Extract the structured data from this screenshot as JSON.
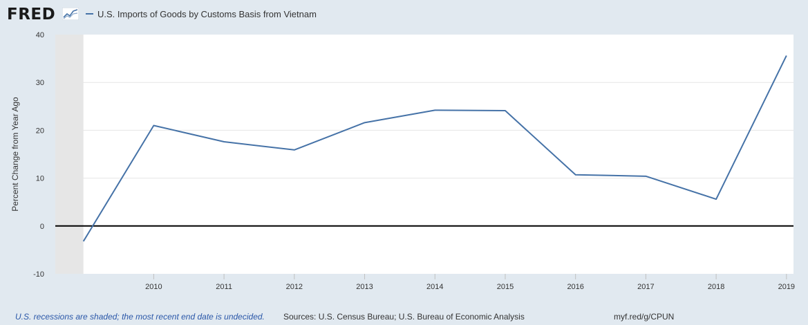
{
  "header": {
    "logo_text": "FRED",
    "series_label": "U.S. Imports of Goods by Customs Basis from Vietnam"
  },
  "colors": {
    "series": "#4572a7",
    "background": "#e1e9f0",
    "plot": "#ffffff",
    "recession": "#e6e6e6",
    "zero_line": "#000000"
  },
  "chart_data": {
    "type": "line",
    "title": "",
    "ylabel": "Percent Change from Year Ago",
    "xlabel": "",
    "ylim": [
      -10,
      40
    ],
    "yticks": [
      -10,
      0,
      10,
      20,
      30,
      40
    ],
    "xlim": [
      2008.6,
      2019.1
    ],
    "xticks": [
      2010,
      2011,
      2012,
      2013,
      2014,
      2015,
      2016,
      2017,
      2018,
      2019
    ],
    "grid": true,
    "legend_position": "top-left",
    "recessions": [
      [
        2008.6,
        2009.0
      ]
    ],
    "series": [
      {
        "name": "U.S. Imports of Goods by Customs Basis from Vietnam",
        "x": [
          2009,
          2010,
          2011,
          2012,
          2013,
          2014,
          2015,
          2016,
          2017,
          2018,
          2019
        ],
        "y": [
          -3.2,
          21.0,
          17.6,
          15.9,
          21.6,
          24.2,
          24.1,
          10.7,
          10.4,
          5.6,
          35.6
        ]
      }
    ]
  },
  "footer": {
    "note": "U.S. recessions are shaded; the most recent end date is undecided.",
    "sources": "Sources: U.S. Census Bureau; U.S. Bureau of Economic Analysis",
    "url": "myf.red/g/CPUN"
  }
}
